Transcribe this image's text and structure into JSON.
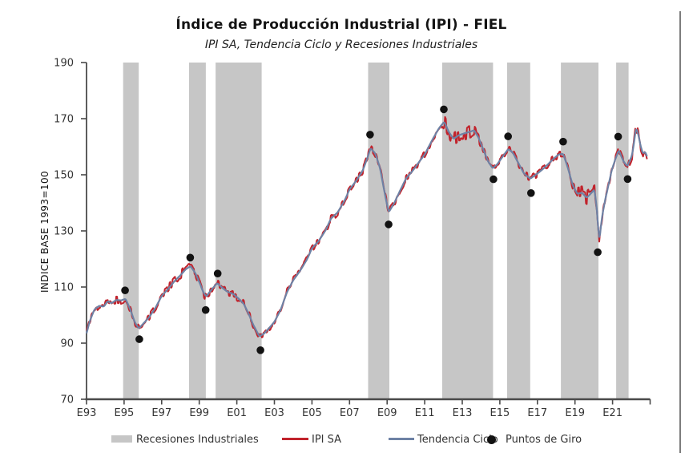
{
  "title": "Índice de Producción Industrial (IPI) - FIEL",
  "subtitle": "IPI SA, Tendencia Ciclo y Recesiones Industriales",
  "y_axis": {
    "title": "INDICE BASE 1993=100",
    "min": 70,
    "max": 190,
    "tick_step": 20,
    "tick_labels": [
      "190",
      "170",
      "150",
      "130",
      "110",
      "90",
      "70"
    ]
  },
  "x_axis": {
    "tick_labels": [
      "E93",
      "E95",
      "E97",
      "E99",
      "E01",
      "E03",
      "E05",
      "E07",
      "E09",
      "E11",
      "E13",
      "E15",
      "E17",
      "E19",
      "E21"
    ],
    "years_per_tick": 2
  },
  "legend": {
    "recessions": "Recesiones Industriales",
    "ipi_sa": "IPI SA",
    "tendencia": "Tendencia Ciclo",
    "puntos": "Puntos de Giro"
  },
  "colors": {
    "recession_band": "#c6c6c6",
    "ipi_sa_line": "#c1232c",
    "tendencia_line": "#6e82a5",
    "turning_point": "#121212",
    "axis": "#4a4a4a",
    "divider": "#7d7d7d"
  },
  "chart_data": {
    "type": "line",
    "title": "Índice de Producción Industrial (IPI) - FIEL",
    "subtitle": "IPI SA, Tendencia Ciclo y Recesiones Industriales",
    "ylabel": "INDICE BASE 1993=100",
    "ylim": [
      70,
      190
    ],
    "ytick_step": 20,
    "x_range": [
      1993.0,
      2022.87
    ],
    "grid": false,
    "legend_position": "bottom",
    "recessions": [
      [
        1994.95,
        1995.78
      ],
      [
        1998.46,
        1999.35
      ],
      [
        1999.87,
        2002.32
      ],
      [
        2007.99,
        2009.12
      ],
      [
        2011.93,
        2014.64
      ],
      [
        2015.39,
        2016.62
      ],
      [
        2018.25,
        2020.25
      ],
      [
        2021.19,
        2021.85
      ]
    ],
    "turning_points": [
      {
        "date": 1995.05,
        "value": 108.8,
        "type": "peak"
      },
      {
        "date": 1995.81,
        "value": 91.4,
        "type": "trough"
      },
      {
        "date": 1998.52,
        "value": 120.5,
        "type": "peak"
      },
      {
        "date": 1999.34,
        "value": 101.8,
        "type": "trough"
      },
      {
        "date": 1999.98,
        "value": 114.8,
        "type": "peak"
      },
      {
        "date": 2002.26,
        "value": 87.5,
        "type": "trough"
      },
      {
        "date": 2008.09,
        "value": 164.3,
        "type": "peak"
      },
      {
        "date": 2009.08,
        "value": 132.3,
        "type": "trough"
      },
      {
        "date": 2012.02,
        "value": 173.3,
        "type": "peak"
      },
      {
        "date": 2014.66,
        "value": 148.4,
        "type": "trough"
      },
      {
        "date": 2015.44,
        "value": 163.7,
        "type": "peak"
      },
      {
        "date": 2016.66,
        "value": 143.5,
        "type": "trough"
      },
      {
        "date": 2018.37,
        "value": 161.8,
        "type": "peak"
      },
      {
        "date": 2020.21,
        "value": 122.4,
        "type": "trough"
      },
      {
        "date": 2021.3,
        "value": 163.6,
        "type": "peak"
      },
      {
        "date": 2021.8,
        "value": 148.5,
        "type": "trough"
      }
    ],
    "series": [
      {
        "name": "Tendencia Ciclo",
        "anchors": [
          [
            1993.0,
            93.5
          ],
          [
            1993.17,
            97.8
          ],
          [
            1993.42,
            102.0
          ],
          [
            1993.67,
            103.3
          ],
          [
            1993.92,
            103.0
          ],
          [
            1994.13,
            105.0
          ],
          [
            1994.33,
            104.2
          ],
          [
            1994.58,
            105.4
          ],
          [
            1994.83,
            105.2
          ],
          [
            1995.08,
            105.8
          ],
          [
            1995.33,
            102.0
          ],
          [
            1995.58,
            97.3
          ],
          [
            1995.79,
            95.2
          ],
          [
            1996.0,
            96.8
          ],
          [
            1996.33,
            99.2
          ],
          [
            1996.67,
            102.6
          ],
          [
            1997.0,
            106.8
          ],
          [
            1997.33,
            109.2
          ],
          [
            1997.67,
            112.0
          ],
          [
            1998.0,
            114.2
          ],
          [
            1998.29,
            116.4
          ],
          [
            1998.54,
            117.4
          ],
          [
            1998.79,
            115.0
          ],
          [
            1999.04,
            111.2
          ],
          [
            1999.21,
            108.2
          ],
          [
            1999.37,
            106.6
          ],
          [
            1999.62,
            108.8
          ],
          [
            1999.95,
            111.4
          ],
          [
            2000.21,
            109.8
          ],
          [
            2000.5,
            108.3
          ],
          [
            2000.79,
            107.6
          ],
          [
            2001.08,
            106.0
          ],
          [
            2001.37,
            104.0
          ],
          [
            2001.62,
            100.6
          ],
          [
            2001.87,
            96.6
          ],
          [
            2002.2,
            92.4
          ],
          [
            2002.45,
            93.4
          ],
          [
            2002.7,
            95.2
          ],
          [
            2003.0,
            97.6
          ],
          [
            2003.33,
            101.8
          ],
          [
            2003.66,
            108.0
          ],
          [
            2004.0,
            112.4
          ],
          [
            2004.37,
            115.8
          ],
          [
            2004.75,
            120.0
          ],
          [
            2005.0,
            123.8
          ],
          [
            2005.37,
            126.5
          ],
          [
            2005.75,
            130.5
          ],
          [
            2006.0,
            134.3
          ],
          [
            2006.37,
            136.6
          ],
          [
            2006.75,
            141.0
          ],
          [
            2007.0,
            144.8
          ],
          [
            2007.37,
            148.0
          ],
          [
            2007.7,
            151.5
          ],
          [
            2007.95,
            156.0
          ],
          [
            2008.12,
            159.5
          ],
          [
            2008.37,
            157.6
          ],
          [
            2008.62,
            152.5
          ],
          [
            2008.87,
            143.5
          ],
          [
            2009.08,
            136.6
          ],
          [
            2009.37,
            139.8
          ],
          [
            2009.7,
            144.5
          ],
          [
            2010.0,
            148.6
          ],
          [
            2010.37,
            151.5
          ],
          [
            2010.75,
            155.0
          ],
          [
            2011.0,
            157.2
          ],
          [
            2011.37,
            162.0
          ],
          [
            2011.75,
            166.5
          ],
          [
            2012.04,
            168.9
          ],
          [
            2012.29,
            165.2
          ],
          [
            2012.54,
            162.8
          ],
          [
            2012.79,
            164.0
          ],
          [
            2013.12,
            164.8
          ],
          [
            2013.45,
            165.4
          ],
          [
            2013.62,
            165.9
          ],
          [
            2013.87,
            163.2
          ],
          [
            2014.12,
            159.0
          ],
          [
            2014.37,
            154.8
          ],
          [
            2014.62,
            152.3
          ],
          [
            2014.87,
            153.8
          ],
          [
            2015.12,
            156.2
          ],
          [
            2015.45,
            159.2
          ],
          [
            2015.7,
            157.8
          ],
          [
            2016.0,
            154.0
          ],
          [
            2016.29,
            150.4
          ],
          [
            2016.62,
            148.6
          ],
          [
            2016.87,
            149.8
          ],
          [
            2017.2,
            151.5
          ],
          [
            2017.54,
            153.6
          ],
          [
            2017.87,
            155.8
          ],
          [
            2018.12,
            157.2
          ],
          [
            2018.37,
            157.5
          ],
          [
            2018.62,
            152.5
          ],
          [
            2018.87,
            146.5
          ],
          [
            2019.12,
            143.2
          ],
          [
            2019.37,
            143.6
          ],
          [
            2019.62,
            141.8
          ],
          [
            2019.87,
            143.5
          ],
          [
            2020.04,
            144.8
          ],
          [
            2020.16,
            138.0
          ],
          [
            2020.29,
            126.3
          ],
          [
            2020.45,
            135.5
          ],
          [
            2020.62,
            141.5
          ],
          [
            2020.79,
            146.5
          ],
          [
            2020.95,
            151.5
          ],
          [
            2021.12,
            155.0
          ],
          [
            2021.33,
            158.8
          ],
          [
            2021.58,
            154.8
          ],
          [
            2021.79,
            153.0
          ],
          [
            2022.04,
            157.0
          ],
          [
            2022.12,
            160.5
          ],
          [
            2022.25,
            166.8
          ],
          [
            2022.37,
            164.5
          ],
          [
            2022.5,
            160.0
          ],
          [
            2022.62,
            157.5
          ],
          [
            2022.73,
            158.3
          ],
          [
            2022.87,
            156.0
          ]
        ]
      },
      {
        "name": "IPI SA",
        "derived_from": "Tendencia Ciclo",
        "noise_base": 1.25,
        "noise_boosts": [
          [
            1997.3,
            1999.3,
            1.3
          ],
          [
            2012.0,
            2014.0,
            1.9
          ],
          [
            2018.75,
            2020.08,
            1.9
          ],
          [
            2021.85,
            2022.75,
            1.5
          ]
        ]
      }
    ]
  }
}
